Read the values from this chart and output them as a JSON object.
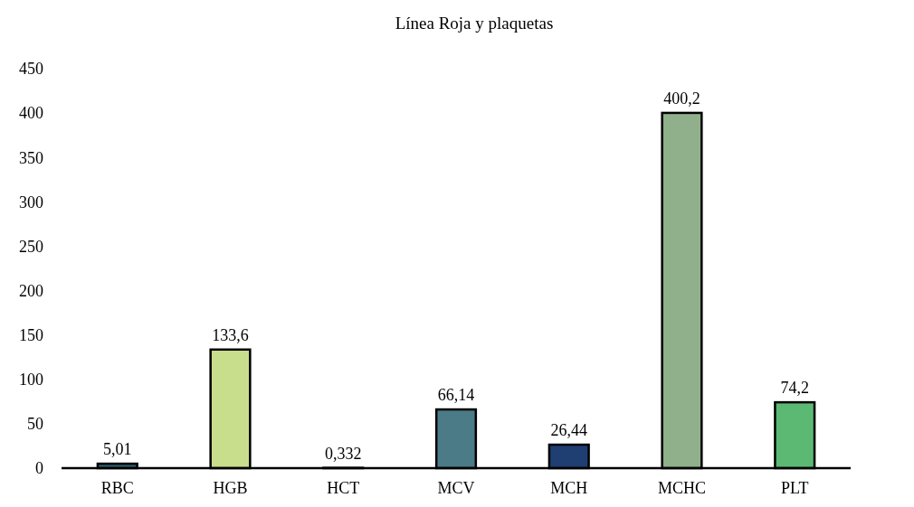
{
  "chart_data": {
    "type": "bar",
    "title": "Línea Roja y plaquetas",
    "categories": [
      "RBC",
      "HGB",
      "HCT",
      "MCV",
      "MCH",
      "MCHC",
      "PLT"
    ],
    "values": [
      5.01,
      133.6,
      0.332,
      66.14,
      26.44,
      400.2,
      74.2
    ],
    "value_labels": [
      "5,01",
      "133,6",
      "0,332",
      "66,14",
      "26,44",
      "400,2",
      "74,2"
    ],
    "colors": [
      "#2f5f6e",
      "#c9de8c",
      "#6a9a8a",
      "#4a7b87",
      "#1f3f73",
      "#8fb08a",
      "#5bb973"
    ],
    "ylim": [
      0,
      450
    ],
    "yticks": [
      0,
      50,
      100,
      150,
      200,
      250,
      300,
      350,
      400,
      450
    ],
    "grid": false
  }
}
